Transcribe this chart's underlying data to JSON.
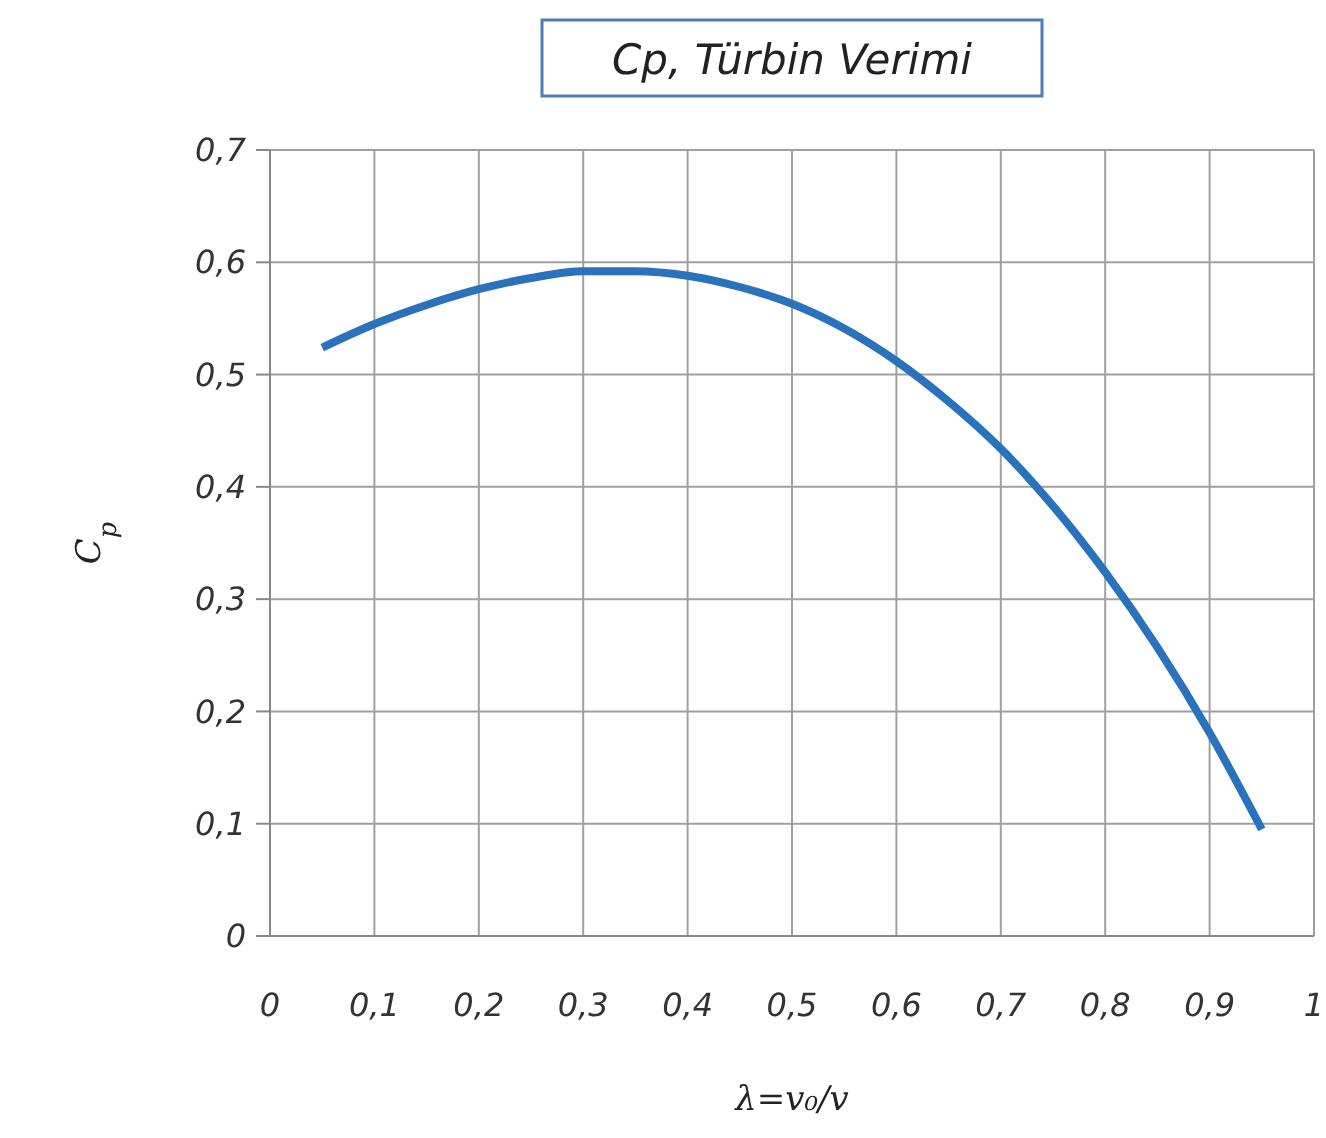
{
  "chart_data": {
    "type": "line",
    "title": "Cp, Türbin Verimi",
    "xlabel": "λ=v₀/v",
    "ylabel": "C$_{p}$",
    "x": [
      0.05,
      0.1,
      0.15,
      0.2,
      0.25,
      0.3,
      0.35,
      0.4,
      0.45,
      0.5,
      0.55,
      0.6,
      0.65,
      0.7,
      0.75,
      0.8,
      0.85,
      0.9,
      0.95
    ],
    "series": [
      {
        "color": "#2a72bb",
        "values": [
          0.524,
          0.545,
          0.562,
          0.576,
          0.586,
          0.592,
          0.592,
          0.588,
          0.578,
          0.563,
          0.541,
          0.512,
          0.476,
          0.434,
          0.383,
          0.324,
          0.257,
          0.181,
          0.095
        ]
      }
    ],
    "xlim": [
      0,
      1
    ],
    "ylim": [
      0,
      0.7
    ],
    "xticks": [
      0,
      {
        "value": 0.1,
        "label": "0,1"
      },
      {
        "value": 0.2,
        "label": "0,2"
      },
      {
        "value": 0.3,
        "label": "0,3"
      },
      {
        "value": 0.4,
        "label": "0,4"
      },
      {
        "value": 0.5,
        "label": "0,5"
      },
      {
        "value": 0.6,
        "label": "0,6"
      },
      {
        "value": 0.7,
        "label": "0,7"
      },
      {
        "value": 0.8,
        "label": "0,8"
      },
      {
        "value": 0.9,
        "label": "0,9"
      },
      1
    ],
    "yticks": [
      0,
      {
        "value": 0.1,
        "label": "0,1"
      },
      {
        "value": 0.2,
        "label": "0,2"
      },
      {
        "value": 0.3,
        "label": "0,3"
      },
      {
        "value": 0.4,
        "label": "0,4"
      },
      {
        "value": 0.5,
        "label": "0,5"
      },
      {
        "value": 0.6,
        "label": "0,6"
      },
      {
        "value": 0.7,
        "label": "0,7"
      }
    ],
    "grid": true,
    "marker": "none",
    "line_style": "solid"
  }
}
